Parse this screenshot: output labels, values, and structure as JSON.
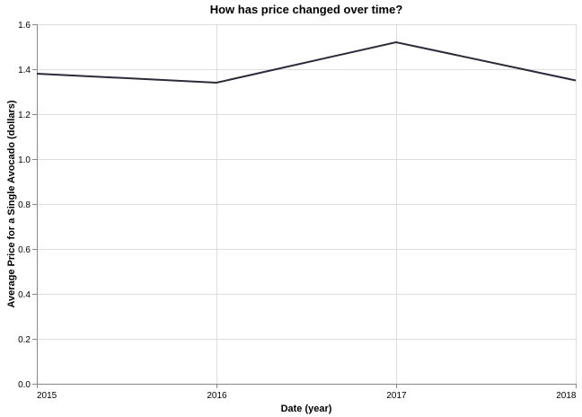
{
  "chart_data": {
    "type": "line",
    "title": "How has price changed over time?",
    "xlabel": "Date (year)",
    "ylabel": "Average Price for a Single Avocado (dollars)",
    "x": [
      "2015",
      "2016",
      "2017",
      "2018"
    ],
    "series": [
      {
        "values": [
          1.38,
          1.34,
          1.52,
          1.35
        ],
        "color": "#2b2b3b"
      }
    ],
    "xlim": [
      2015,
      2018
    ],
    "ylim": [
      0,
      1.6
    ],
    "y_ticks": [
      "0.0",
      "0.2",
      "0.4",
      "0.6",
      "0.8",
      "1.0",
      "1.2",
      "1.4",
      "1.6"
    ],
    "grid": true,
    "legend": "none"
  }
}
